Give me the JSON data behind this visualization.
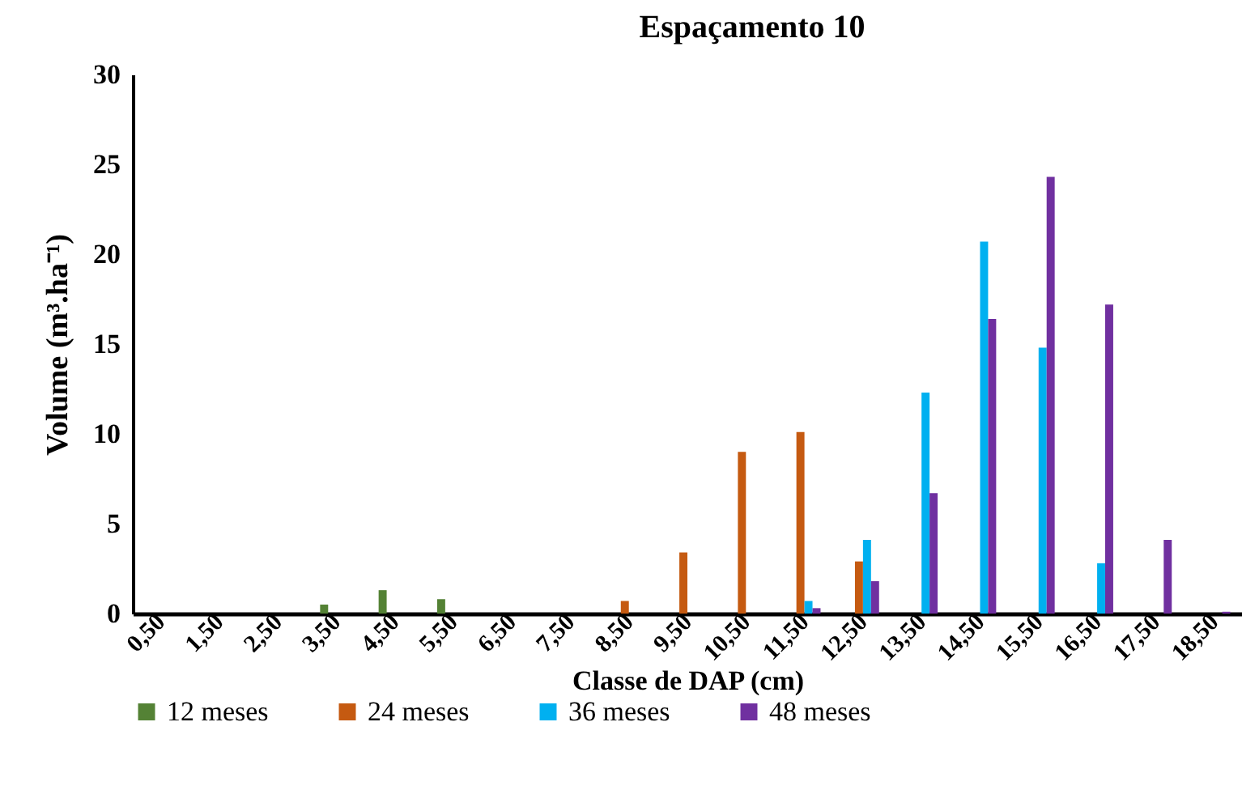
{
  "chart_data": {
    "type": "bar",
    "title": "Espaçamento  10",
    "xlabel": "Classe de DAP (cm)",
    "ylabel": "Volume  (m³.ha⁻¹)",
    "categories": [
      "0,50",
      "1,50",
      "2,50",
      "3,50",
      "4,50",
      "5,50",
      "6,50",
      "7,50",
      "8,50",
      "9,50",
      "10,50",
      "11,50",
      "12,50",
      "13,50",
      "14,50",
      "15,50",
      "16,50",
      "17,50",
      "18,50"
    ],
    "series": [
      {
        "name": "12 meses",
        "color": "#548235",
        "values": [
          0,
          0,
          0,
          0.5,
          1.3,
          0.8,
          0,
          0,
          0,
          0,
          0,
          0,
          0,
          0,
          0,
          0,
          0,
          0,
          0
        ]
      },
      {
        "name": "24 meses",
        "color": "#c55a11",
        "values": [
          0,
          0,
          0,
          0,
          0,
          0,
          0,
          0,
          0.7,
          3.4,
          9.0,
          10.1,
          2.9,
          0,
          0,
          0,
          0,
          0,
          0
        ]
      },
      {
        "name": "36 meses",
        "color": "#00b0f0",
        "values": [
          0,
          0,
          0,
          0,
          0,
          0,
          0,
          0,
          0,
          0,
          0,
          0.7,
          4.1,
          12.3,
          20.7,
          14.8,
          2.8,
          0,
          0
        ]
      },
      {
        "name": "48 meses",
        "color": "#7030a0",
        "values": [
          0,
          0,
          0,
          0,
          0,
          0,
          0,
          0,
          0,
          0,
          0,
          0.3,
          1.8,
          6.7,
          16.4,
          24.3,
          17.2,
          4.1,
          0.1
        ]
      }
    ],
    "ylim": [
      0,
      30
    ],
    "yticks": [
      0,
      5,
      10,
      15,
      20,
      25,
      30
    ],
    "grid": false,
    "legend": "bottom"
  }
}
